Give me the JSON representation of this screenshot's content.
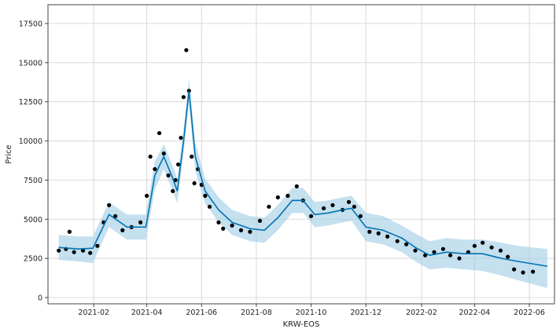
{
  "chart_data": {
    "type": "scatter",
    "title": "",
    "xlabel": "KRW-EOS",
    "ylabel": "Price",
    "ylim": [
      -400,
      18700
    ],
    "xlim": [
      "2020-12-12",
      "2022-06-29"
    ],
    "grid": true,
    "legend": "none",
    "x_ticks": [
      {
        "date": "2021-02-01",
        "label": "2021-02"
      },
      {
        "date": "2021-04-01",
        "label": "2021-04"
      },
      {
        "date": "2021-06-01",
        "label": "2021-06"
      },
      {
        "date": "2021-08-01",
        "label": "2021-08"
      },
      {
        "date": "2021-10-01",
        "label": "2021-10"
      },
      {
        "date": "2021-12-01",
        "label": "2021-12"
      },
      {
        "date": "2022-02-01",
        "label": "2022-02"
      },
      {
        "date": "2022-04-01",
        "label": "2022-04"
      },
      {
        "date": "2022-06-01",
        "label": "2022-06"
      }
    ],
    "y_ticks": [
      0,
      2500,
      5000,
      7500,
      10000,
      12500,
      15000,
      17500
    ],
    "colors": {
      "observed": "#000000",
      "forecast": "#0072b2",
      "interval": "#a6cfe6",
      "grid": "#d9d9d9"
    },
    "series": [
      {
        "role": "observed",
        "x": [
          "2020-12-24",
          "2021-01-01",
          "2021-01-05",
          "2021-01-10",
          "2021-01-20",
          "2021-01-28",
          "2021-02-05",
          "2021-02-12",
          "2021-02-18",
          "2021-02-25",
          "2021-03-05",
          "2021-03-15",
          "2021-03-25",
          "2021-04-01",
          "2021-04-05",
          "2021-04-10",
          "2021-04-15",
          "2021-04-20",
          "2021-04-25",
          "2021-04-30",
          "2021-05-03",
          "2021-05-06",
          "2021-05-09",
          "2021-05-12",
          "2021-05-15",
          "2021-05-18",
          "2021-05-21",
          "2021-05-24",
          "2021-05-28",
          "2021-06-01",
          "2021-06-05",
          "2021-06-10",
          "2021-06-20",
          "2021-06-25",
          "2021-07-05",
          "2021-07-15",
          "2021-07-25",
          "2021-08-05",
          "2021-08-15",
          "2021-08-25",
          "2021-09-05",
          "2021-09-15",
          "2021-09-22",
          "2021-10-01",
          "2021-10-15",
          "2021-10-25",
          "2021-11-05",
          "2021-11-12",
          "2021-11-18",
          "2021-11-25",
          "2021-12-05",
          "2021-12-15",
          "2021-12-25",
          "2022-01-05",
          "2022-01-15",
          "2022-01-25",
          "2022-02-05",
          "2022-02-15",
          "2022-02-25",
          "2022-03-05",
          "2022-03-15",
          "2022-03-25",
          "2022-04-01",
          "2022-04-10",
          "2022-04-20",
          "2022-04-30",
          "2022-05-08",
          "2022-05-15",
          "2022-05-25",
          "2022-06-05"
        ],
        "y": [
          3000,
          3100,
          4200,
          2900,
          3000,
          2850,
          3300,
          4800,
          5900,
          5200,
          4300,
          4500,
          4800,
          6500,
          9000,
          8200,
          10500,
          9200,
          7800,
          6800,
          7500,
          8500,
          10200,
          12800,
          15800,
          13200,
          9000,
          7300,
          8200,
          7200,
          6500,
          5800,
          4800,
          4400,
          4600,
          4300,
          4200,
          4900,
          5800,
          6400,
          6500,
          7100,
          6200,
          5200,
          5700,
          5900,
          5600,
          6100,
          5800,
          5200,
          4200,
          4100,
          3900,
          3600,
          3400,
          3000,
          2700,
          2900,
          3100,
          2700,
          2500,
          2900,
          3300,
          3500,
          3200,
          3000,
          2600,
          1800,
          1600,
          1650
        ]
      },
      {
        "role": "forecast",
        "x": [
          "2020-12-24",
          "2021-01-15",
          "2021-01-31",
          "2021-02-18",
          "2021-03-10",
          "2021-03-31",
          "2021-04-10",
          "2021-04-20",
          "2021-04-30",
          "2021-05-05",
          "2021-05-12",
          "2021-05-18",
          "2021-05-25",
          "2021-06-05",
          "2021-06-20",
          "2021-07-05",
          "2021-07-25",
          "2021-08-10",
          "2021-08-25",
          "2021-09-10",
          "2021-09-22",
          "2021-10-05",
          "2021-10-20",
          "2021-11-05",
          "2021-11-15",
          "2021-12-01",
          "2021-12-20",
          "2022-01-10",
          "2022-01-25",
          "2022-02-10",
          "2022-03-01",
          "2022-03-20",
          "2022-04-10",
          "2022-05-01",
          "2022-05-20",
          "2022-06-21"
        ],
        "y": [
          3200,
          3100,
          3150,
          5300,
          4500,
          4500,
          7800,
          9000,
          7600,
          6800,
          10000,
          13200,
          9000,
          6800,
          5600,
          4800,
          4400,
          4300,
          5100,
          6200,
          6200,
          5300,
          5400,
          5600,
          5700,
          4500,
          4300,
          3800,
          3200,
          2700,
          2900,
          2800,
          2800,
          2500,
          2300,
          2000
        ]
      },
      {
        "role": "interval_upper",
        "x": [
          "2020-12-24",
          "2021-01-15",
          "2021-01-31",
          "2021-02-18",
          "2021-03-10",
          "2021-03-31",
          "2021-04-10",
          "2021-04-20",
          "2021-04-30",
          "2021-05-05",
          "2021-05-12",
          "2021-05-18",
          "2021-05-25",
          "2021-06-05",
          "2021-06-20",
          "2021-07-05",
          "2021-07-25",
          "2021-08-10",
          "2021-08-25",
          "2021-09-10",
          "2021-09-22",
          "2021-10-05",
          "2021-10-20",
          "2021-11-05",
          "2021-11-15",
          "2021-12-01",
          "2021-12-20",
          "2022-01-10",
          "2022-01-25",
          "2022-02-10",
          "2022-03-01",
          "2022-03-20",
          "2022-04-10",
          "2022-05-01",
          "2022-05-20",
          "2022-06-21"
        ],
        "y": [
          4000,
          3900,
          3900,
          6100,
          5300,
          5300,
          8700,
          9800,
          8400,
          7600,
          10800,
          14000,
          9900,
          7600,
          6400,
          5600,
          5200,
          5100,
          5900,
          7000,
          7000,
          6100,
          6200,
          6400,
          6500,
          5400,
          5200,
          4600,
          4100,
          3600,
          3800,
          3700,
          3700,
          3500,
          3300,
          3100
        ]
      },
      {
        "role": "interval_lower",
        "x": [
          "2020-12-24",
          "2021-01-15",
          "2021-01-31",
          "2021-02-18",
          "2021-03-10",
          "2021-03-31",
          "2021-04-10",
          "2021-04-20",
          "2021-04-30",
          "2021-05-05",
          "2021-05-12",
          "2021-05-18",
          "2021-05-25",
          "2021-06-05",
          "2021-06-20",
          "2021-07-05",
          "2021-07-25",
          "2021-08-10",
          "2021-08-25",
          "2021-09-10",
          "2021-09-22",
          "2021-10-05",
          "2021-10-20",
          "2021-11-05",
          "2021-11-15",
          "2021-12-01",
          "2021-12-20",
          "2022-01-10",
          "2022-01-25",
          "2022-02-10",
          "2022-03-01",
          "2022-03-20",
          "2022-04-10",
          "2022-05-01",
          "2022-05-20",
          "2022-06-21"
        ],
        "y": [
          2400,
          2300,
          2200,
          4500,
          3700,
          3700,
          6900,
          8200,
          6800,
          6000,
          9200,
          12400,
          8100,
          6000,
          4800,
          4000,
          3600,
          3500,
          4300,
          5400,
          5400,
          4500,
          4600,
          4800,
          4900,
          3600,
          3400,
          2900,
          2300,
          1800,
          1900,
          1800,
          1700,
          1400,
          1100,
          600
        ]
      }
    ]
  }
}
